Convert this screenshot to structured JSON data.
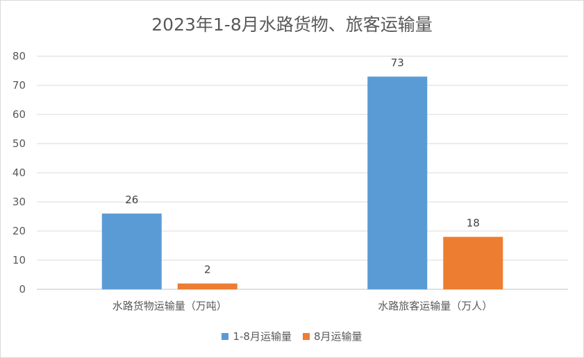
{
  "chart_data": {
    "type": "bar",
    "title": "2023年1-8月水路货物、旅客运输量",
    "categories": [
      "水路货物运输量（万吨）",
      "水路旅客运输量（万人）"
    ],
    "series": [
      {
        "name": "1-8月运输量",
        "values": [
          26,
          73
        ],
        "color": "#5b9bd5"
      },
      {
        "name": "8月运输量",
        "values": [
          2,
          18
        ],
        "color": "#ed7d31"
      }
    ],
    "ylim": [
      0,
      80
    ],
    "yticks": [
      0,
      10,
      20,
      30,
      40,
      50,
      60,
      70,
      80
    ],
    "grid": true,
    "legend": "bottom",
    "data_labels": true
  }
}
